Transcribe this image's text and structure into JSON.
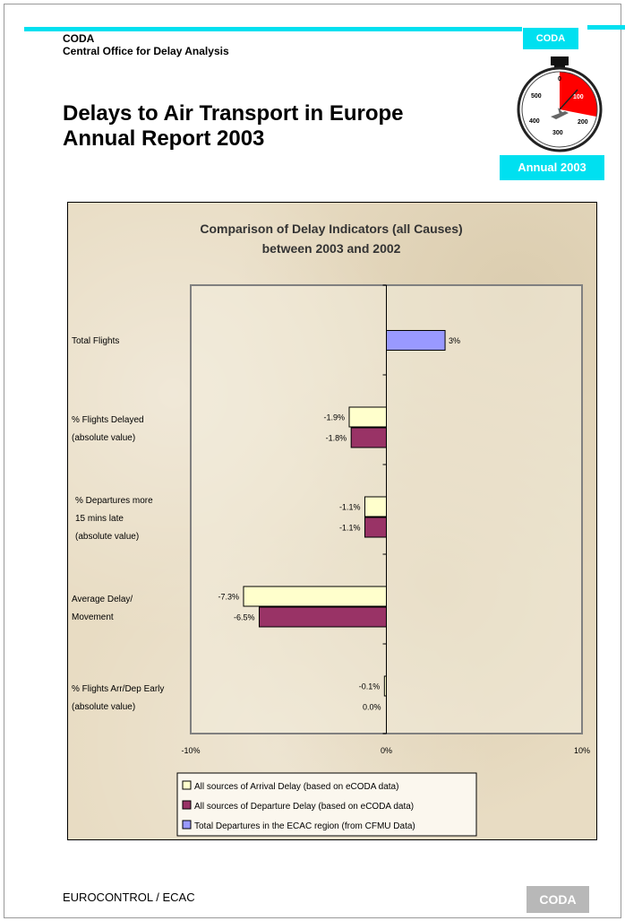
{
  "header": {
    "org_short": "CODA",
    "org_full": "Central Office for Delay Analysis",
    "title_line1": "Delays to Air Transport in Europe",
    "title_line2": "Annual Report 2003",
    "badge_top": "CODA",
    "badge_bottom": "Annual 2003"
  },
  "stopwatch": {
    "dial_labels": [
      "0",
      "100",
      "200",
      "300",
      "400",
      "500"
    ],
    "accent_color": "#ff0000"
  },
  "footer": {
    "left_text": "EUROCONTROL / ECAC",
    "badge": "CODA"
  },
  "colors": {
    "cyan": "#00e0f0",
    "arrival": "#ffffcc",
    "departure": "#993366",
    "ecac": "#9999ff"
  },
  "chart_data": {
    "type": "bar",
    "orientation": "horizontal",
    "title": "Comparison of Delay Indicators (all Causes) between 2003 and 2002",
    "categories": [
      "Total Flights",
      "% Flights Delayed (absolute value)",
      "% Departures more 15 mins late (absolute value)",
      "Average Delay/ Movement",
      "% Flights Arr/Dep Early (absolute value)"
    ],
    "category_lines": [
      [
        "Total Flights"
      ],
      [
        "% Flights Delayed",
        "(absolute value)"
      ],
      [
        "% Departures more",
        "15 mins late",
        "(absolute value)"
      ],
      [
        "Average Delay/",
        "Movement"
      ],
      [
        "% Flights Arr/Dep Early",
        "(absolute value)"
      ]
    ],
    "series": [
      {
        "name": "All sources of Arrival Delay (based on eCODA data)",
        "values": [
          null,
          -1.9,
          -1.1,
          -7.3,
          -0.1
        ],
        "labels": [
          null,
          "-1.9%",
          "-1.1%",
          "-7.3%",
          "-0.1%"
        ]
      },
      {
        "name": "All sources of Departure Delay (based on eCODA data)",
        "values": [
          null,
          -1.8,
          -1.1,
          -6.5,
          0.0
        ],
        "labels": [
          null,
          "-1.8%",
          "-1.1%",
          "-6.5%",
          "0.0%"
        ]
      },
      {
        "name": "Total Departures in the ECAC region (from CFMU Data)",
        "values": [
          3,
          null,
          null,
          null,
          null
        ],
        "labels": [
          "3%",
          null,
          null,
          null,
          null
        ]
      }
    ],
    "xlim": [
      -10,
      10
    ],
    "x_ticks": [
      "-10%",
      "0%",
      "10%"
    ],
    "grid": false,
    "legend_position": "bottom"
  }
}
